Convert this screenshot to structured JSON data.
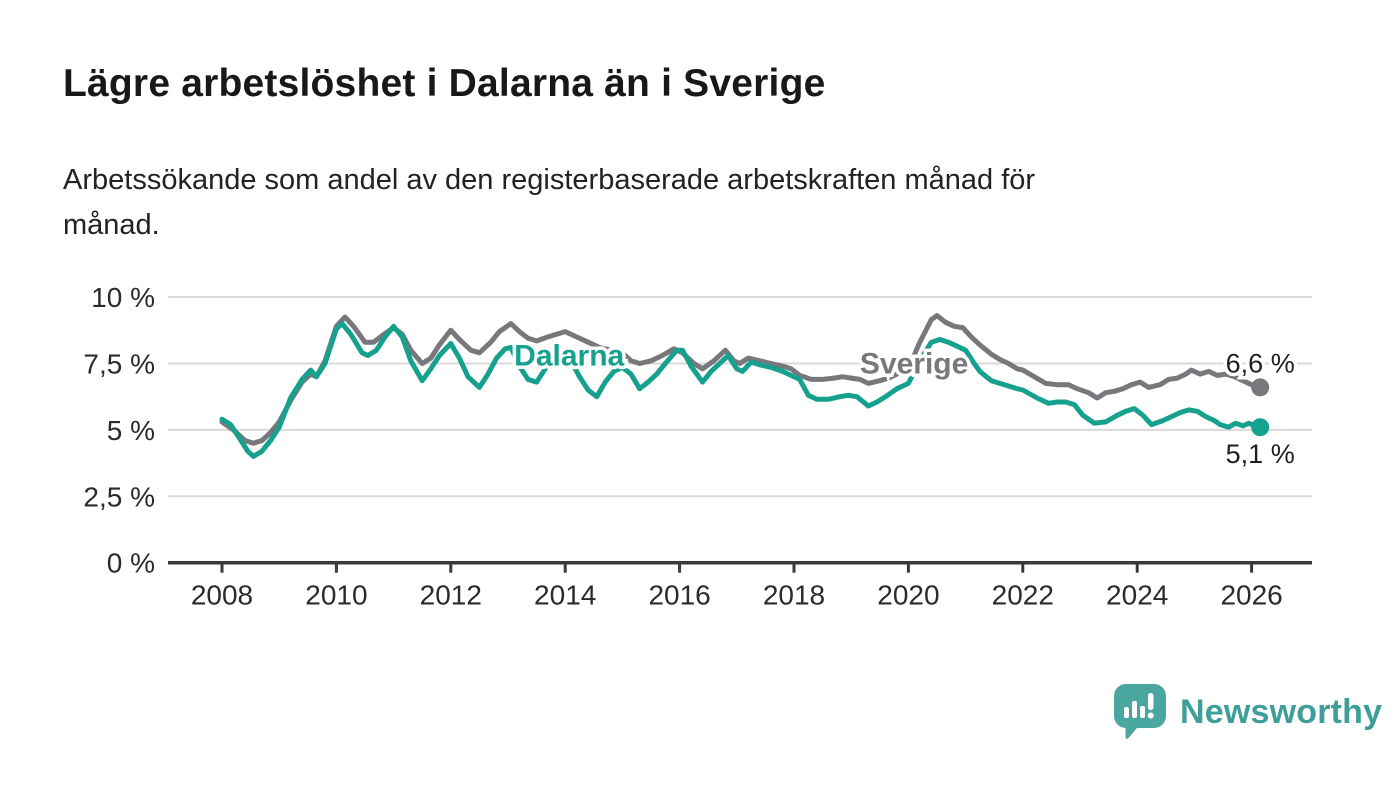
{
  "header": {
    "title": "Lägre arbetslöshet i Dalarna än i Sverige",
    "subtitle_line1": "Arbetssökande som andel av den registerbaserade arbetskraften månad för",
    "subtitle_line2": "månad."
  },
  "chart_data": {
    "type": "line",
    "title": "Lägre arbetslöshet i Dalarna än i Sverige",
    "xlabel": "",
    "ylabel": "",
    "unit": "%",
    "grid": "horizontal-only",
    "x_axis": {
      "ticks": [
        2008,
        2010,
        2012,
        2014,
        2016,
        2018,
        2020,
        2022,
        2024,
        2026
      ],
      "range": [
        2007.05,
        2027.1
      ]
    },
    "y_axis": {
      "ticks": [
        {
          "value": 0,
          "label": "0 %"
        },
        {
          "value": 2.5,
          "label": "2,5 %"
        },
        {
          "value": 5,
          "label": "5 %"
        },
        {
          "value": 7.5,
          "label": "7,5 %"
        },
        {
          "value": 10,
          "label": "10 %"
        }
      ],
      "range": [
        0,
        10.8
      ]
    },
    "series": [
      {
        "name": "Sverige",
        "color": "#77777c",
        "line_width": 5,
        "inline_label": {
          "text": "Sverige",
          "x": 2020.1,
          "y": 7.5
        },
        "end_value_label": "6,6 %",
        "end_label_placement": "above",
        "points": [
          [
            2008.0,
            5.3
          ],
          [
            2008.2,
            5.0
          ],
          [
            2008.4,
            4.6
          ],
          [
            2008.55,
            4.5
          ],
          [
            2008.7,
            4.6
          ],
          [
            2008.85,
            4.9
          ],
          [
            2009.0,
            5.3
          ],
          [
            2009.2,
            6.1
          ],
          [
            2009.4,
            6.8
          ],
          [
            2009.55,
            7.1
          ],
          [
            2009.65,
            7.0
          ],
          [
            2009.8,
            7.6
          ],
          [
            2010.0,
            8.9
          ],
          [
            2010.15,
            9.25
          ],
          [
            2010.3,
            8.9
          ],
          [
            2010.5,
            8.3
          ],
          [
            2010.65,
            8.3
          ],
          [
            2010.8,
            8.55
          ],
          [
            2011.0,
            8.85
          ],
          [
            2011.15,
            8.6
          ],
          [
            2011.3,
            8.0
          ],
          [
            2011.5,
            7.5
          ],
          [
            2011.65,
            7.7
          ],
          [
            2011.8,
            8.2
          ],
          [
            2012.0,
            8.75
          ],
          [
            2012.15,
            8.4
          ],
          [
            2012.35,
            8.0
          ],
          [
            2012.5,
            7.9
          ],
          [
            2012.7,
            8.3
          ],
          [
            2012.85,
            8.7
          ],
          [
            2013.05,
            9.0
          ],
          [
            2013.2,
            8.7
          ],
          [
            2013.35,
            8.45
          ],
          [
            2013.5,
            8.35
          ],
          [
            2013.7,
            8.5
          ],
          [
            2013.85,
            8.6
          ],
          [
            2014.0,
            8.7
          ],
          [
            2014.2,
            8.5
          ],
          [
            2014.4,
            8.3
          ],
          [
            2014.6,
            8.1
          ],
          [
            2014.8,
            8.0
          ],
          [
            2014.95,
            8.0
          ],
          [
            2015.15,
            7.6
          ],
          [
            2015.3,
            7.5
          ],
          [
            2015.5,
            7.6
          ],
          [
            2015.7,
            7.8
          ],
          [
            2015.9,
            8.05
          ],
          [
            2016.05,
            7.9
          ],
          [
            2016.25,
            7.5
          ],
          [
            2016.4,
            7.3
          ],
          [
            2016.6,
            7.6
          ],
          [
            2016.8,
            8.0
          ],
          [
            2016.95,
            7.6
          ],
          [
            2017.05,
            7.5
          ],
          [
            2017.2,
            7.7
          ],
          [
            2017.4,
            7.6
          ],
          [
            2017.6,
            7.5
          ],
          [
            2017.8,
            7.4
          ],
          [
            2017.95,
            7.3
          ],
          [
            2018.1,
            7.05
          ],
          [
            2018.3,
            6.9
          ],
          [
            2018.5,
            6.9
          ],
          [
            2018.7,
            6.95
          ],
          [
            2018.85,
            7.0
          ],
          [
            2019.0,
            6.95
          ],
          [
            2019.15,
            6.9
          ],
          [
            2019.3,
            6.75
          ],
          [
            2019.5,
            6.85
          ],
          [
            2019.65,
            6.95
          ],
          [
            2019.8,
            7.1
          ],
          [
            2020.0,
            7.3
          ],
          [
            2020.2,
            8.3
          ],
          [
            2020.4,
            9.15
          ],
          [
            2020.5,
            9.3
          ],
          [
            2020.65,
            9.05
          ],
          [
            2020.8,
            8.9
          ],
          [
            2020.95,
            8.85
          ],
          [
            2021.1,
            8.5
          ],
          [
            2021.25,
            8.2
          ],
          [
            2021.45,
            7.85
          ],
          [
            2021.6,
            7.65
          ],
          [
            2021.75,
            7.5
          ],
          [
            2021.9,
            7.3
          ],
          [
            2022.0,
            7.25
          ],
          [
            2022.2,
            7.0
          ],
          [
            2022.4,
            6.75
          ],
          [
            2022.6,
            6.7
          ],
          [
            2022.8,
            6.7
          ],
          [
            2022.95,
            6.55
          ],
          [
            2023.15,
            6.4
          ],
          [
            2023.3,
            6.2
          ],
          [
            2023.45,
            6.4
          ],
          [
            2023.6,
            6.45
          ],
          [
            2023.75,
            6.55
          ],
          [
            2023.9,
            6.7
          ],
          [
            2024.05,
            6.8
          ],
          [
            2024.2,
            6.6
          ],
          [
            2024.4,
            6.7
          ],
          [
            2024.55,
            6.9
          ],
          [
            2024.7,
            6.95
          ],
          [
            2024.85,
            7.1
          ],
          [
            2024.95,
            7.25
          ],
          [
            2025.1,
            7.1
          ],
          [
            2025.25,
            7.2
          ],
          [
            2025.4,
            7.05
          ],
          [
            2025.55,
            7.1
          ],
          [
            2025.7,
            7.0
          ],
          [
            2025.85,
            6.85
          ],
          [
            2026.0,
            6.7
          ],
          [
            2026.15,
            6.6
          ]
        ]
      },
      {
        "name": "Dalarna",
        "color": "#16a18f",
        "line_width": 5,
        "inline_label": {
          "text": "Dalarna",
          "x": 2014.07,
          "y": 7.8
        },
        "end_value_label": "5,1 %",
        "end_label_placement": "below",
        "points": [
          [
            2008.0,
            5.4
          ],
          [
            2008.15,
            5.2
          ],
          [
            2008.3,
            4.7
          ],
          [
            2008.45,
            4.2
          ],
          [
            2008.55,
            4.0
          ],
          [
            2008.7,
            4.2
          ],
          [
            2008.85,
            4.6
          ],
          [
            2009.0,
            5.1
          ],
          [
            2009.2,
            6.2
          ],
          [
            2009.4,
            6.9
          ],
          [
            2009.55,
            7.25
          ],
          [
            2009.65,
            7.0
          ],
          [
            2009.8,
            7.5
          ],
          [
            2010.0,
            8.8
          ],
          [
            2010.1,
            9.0
          ],
          [
            2010.25,
            8.6
          ],
          [
            2010.45,
            7.9
          ],
          [
            2010.55,
            7.8
          ],
          [
            2010.7,
            8.0
          ],
          [
            2010.85,
            8.5
          ],
          [
            2011.0,
            8.9
          ],
          [
            2011.15,
            8.5
          ],
          [
            2011.3,
            7.6
          ],
          [
            2011.5,
            6.85
          ],
          [
            2011.65,
            7.3
          ],
          [
            2011.8,
            7.8
          ],
          [
            2012.0,
            8.25
          ],
          [
            2012.15,
            7.7
          ],
          [
            2012.3,
            7.0
          ],
          [
            2012.5,
            6.6
          ],
          [
            2012.65,
            7.1
          ],
          [
            2012.8,
            7.7
          ],
          [
            2012.95,
            8.05
          ],
          [
            2013.05,
            8.1
          ],
          [
            2013.2,
            7.4
          ],
          [
            2013.35,
            6.9
          ],
          [
            2013.5,
            6.8
          ],
          [
            2013.65,
            7.3
          ],
          [
            2013.8,
            7.7
          ],
          [
            2013.95,
            7.9
          ],
          [
            2014.1,
            7.6
          ],
          [
            2014.25,
            7.0
          ],
          [
            2014.4,
            6.5
          ],
          [
            2014.55,
            6.25
          ],
          [
            2014.7,
            6.8
          ],
          [
            2014.85,
            7.2
          ],
          [
            2015.0,
            7.35
          ],
          [
            2015.15,
            7.1
          ],
          [
            2015.3,
            6.55
          ],
          [
            2015.45,
            6.8
          ],
          [
            2015.6,
            7.1
          ],
          [
            2015.75,
            7.5
          ],
          [
            2015.95,
            8.0
          ],
          [
            2016.05,
            8.0
          ],
          [
            2016.2,
            7.4
          ],
          [
            2016.4,
            6.8
          ],
          [
            2016.55,
            7.2
          ],
          [
            2016.7,
            7.5
          ],
          [
            2016.85,
            7.8
          ],
          [
            2017.0,
            7.3
          ],
          [
            2017.1,
            7.2
          ],
          [
            2017.25,
            7.55
          ],
          [
            2017.4,
            7.45
          ],
          [
            2017.6,
            7.35
          ],
          [
            2017.8,
            7.2
          ],
          [
            2017.95,
            7.05
          ],
          [
            2018.1,
            6.9
          ],
          [
            2018.25,
            6.3
          ],
          [
            2018.4,
            6.15
          ],
          [
            2018.6,
            6.15
          ],
          [
            2018.8,
            6.25
          ],
          [
            2018.95,
            6.3
          ],
          [
            2019.1,
            6.25
          ],
          [
            2019.3,
            5.9
          ],
          [
            2019.45,
            6.05
          ],
          [
            2019.6,
            6.25
          ],
          [
            2019.8,
            6.55
          ],
          [
            2020.0,
            6.75
          ],
          [
            2020.2,
            7.6
          ],
          [
            2020.4,
            8.3
          ],
          [
            2020.55,
            8.4
          ],
          [
            2020.7,
            8.3
          ],
          [
            2020.85,
            8.15
          ],
          [
            2021.0,
            8.0
          ],
          [
            2021.15,
            7.5
          ],
          [
            2021.25,
            7.2
          ],
          [
            2021.45,
            6.85
          ],
          [
            2021.6,
            6.75
          ],
          [
            2021.75,
            6.65
          ],
          [
            2021.9,
            6.55
          ],
          [
            2022.0,
            6.5
          ],
          [
            2022.25,
            6.2
          ],
          [
            2022.45,
            6.0
          ],
          [
            2022.6,
            6.05
          ],
          [
            2022.75,
            6.05
          ],
          [
            2022.9,
            5.95
          ],
          [
            2023.05,
            5.55
          ],
          [
            2023.25,
            5.25
          ],
          [
            2023.45,
            5.3
          ],
          [
            2023.65,
            5.55
          ],
          [
            2023.8,
            5.7
          ],
          [
            2023.95,
            5.8
          ],
          [
            2024.1,
            5.55
          ],
          [
            2024.25,
            5.2
          ],
          [
            2024.45,
            5.35
          ],
          [
            2024.6,
            5.5
          ],
          [
            2024.75,
            5.65
          ],
          [
            2024.9,
            5.75
          ],
          [
            2025.05,
            5.7
          ],
          [
            2025.2,
            5.5
          ],
          [
            2025.35,
            5.35
          ],
          [
            2025.45,
            5.2
          ],
          [
            2025.6,
            5.1
          ],
          [
            2025.72,
            5.25
          ],
          [
            2025.85,
            5.15
          ],
          [
            2025.95,
            5.25
          ],
          [
            2026.05,
            5.15
          ],
          [
            2026.15,
            5.1
          ]
        ]
      }
    ]
  },
  "footer": {
    "brand": "Newsworthy",
    "logo_icon": "newsworthy-speech-bubble-bar-chart-icon"
  },
  "colors": {
    "dalarna_line": "#16a18f",
    "sverige_line": "#77777c",
    "axis": "#3a3a3a",
    "gridline": "#d9d9d9",
    "text": "#222222",
    "brand_teal": "#4aa7a0"
  }
}
